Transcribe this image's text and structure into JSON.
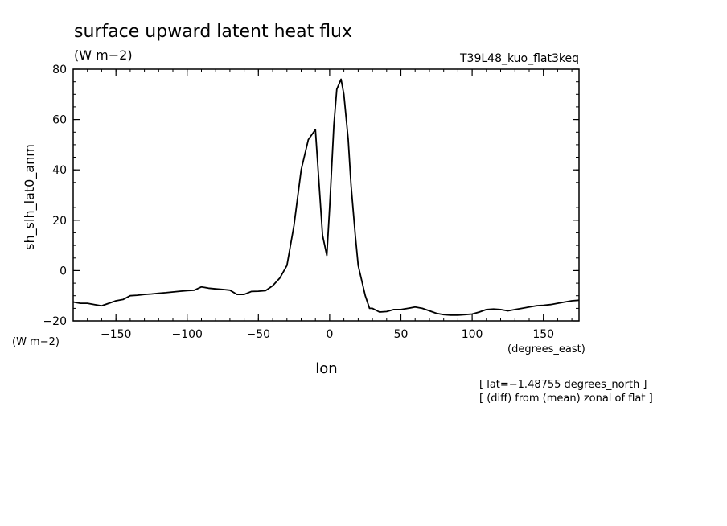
{
  "chart_data": {
    "type": "line",
    "title": "surface upward latent heat flux",
    "subtitle": "(W m−2)",
    "dataset_label": "T39L48_kuo_flat3keq",
    "ylabel": "sh_slh_lat0_anm",
    "ylabel_units": "(W m−2)",
    "xlabel": "lon",
    "xlabel_units": "(degrees_east)",
    "xlim": [
      -180,
      175
    ],
    "ylim": [
      -20,
      80
    ],
    "xticks": [
      -150,
      -100,
      -50,
      0,
      50,
      100,
      150
    ],
    "xtick_labels": [
      "−150",
      "−100",
      "−50",
      "0",
      "50",
      "100",
      "150"
    ],
    "yticks": [
      -20,
      0,
      20,
      40,
      60,
      80
    ],
    "ytick_labels": [
      "−20",
      "0",
      "20",
      "40",
      "60",
      "80"
    ],
    "annotations": [
      "[ lat=−1.48755 degrees_north ]",
      "[ (diff) from (mean) zonal of flat ]"
    ],
    "grid": false,
    "line_color": "#000000",
    "x": [
      -180,
      -175,
      -170,
      -165,
      -160,
      -155,
      -150,
      -145,
      -140,
      -135,
      -130,
      -125,
      -120,
      -115,
      -110,
      -105,
      -100,
      -95,
      -90,
      -85,
      -80,
      -75,
      -70,
      -65,
      -60,
      -55,
      -50,
      -45,
      -40,
      -35,
      -30,
      -25,
      -20,
      -15,
      -10,
      -5,
      -2,
      0,
      3,
      5,
      8,
      10,
      13,
      15,
      18,
      20,
      25,
      28,
      30,
      35,
      40,
      45,
      50,
      55,
      60,
      65,
      70,
      75,
      80,
      85,
      90,
      95,
      100,
      105,
      110,
      115,
      120,
      125,
      130,
      135,
      140,
      145,
      150,
      155,
      160,
      165,
      170,
      175
    ],
    "y": [
      -12.5,
      -13,
      -13,
      -13.5,
      -14,
      -13,
      -12,
      -11.5,
      -10,
      -9.8,
      -9.5,
      -9.3,
      -9,
      -8.8,
      -8.5,
      -8.2,
      -8,
      -7.8,
      -6.5,
      -7,
      -7.3,
      -7.5,
      -7.8,
      -9.5,
      -9.5,
      -8.3,
      -8.2,
      -8,
      -6,
      -3,
      2,
      18,
      40,
      52,
      56,
      14,
      6,
      25,
      58,
      72,
      76,
      70,
      52,
      34,
      14,
      2,
      -10,
      -15,
      -15,
      -16.5,
      -16.3,
      -15.5,
      -15.5,
      -15,
      -14.5,
      -15,
      -16,
      -17,
      -17.5,
      -17.7,
      -17.7,
      -17.5,
      -17.3,
      -16.5,
      -15.5,
      -15.3,
      -15.5,
      -16,
      -15.5,
      -15,
      -14.5,
      -14,
      -13.8,
      -13.5,
      -13,
      -12.5,
      -12,
      -11.8
    ]
  }
}
